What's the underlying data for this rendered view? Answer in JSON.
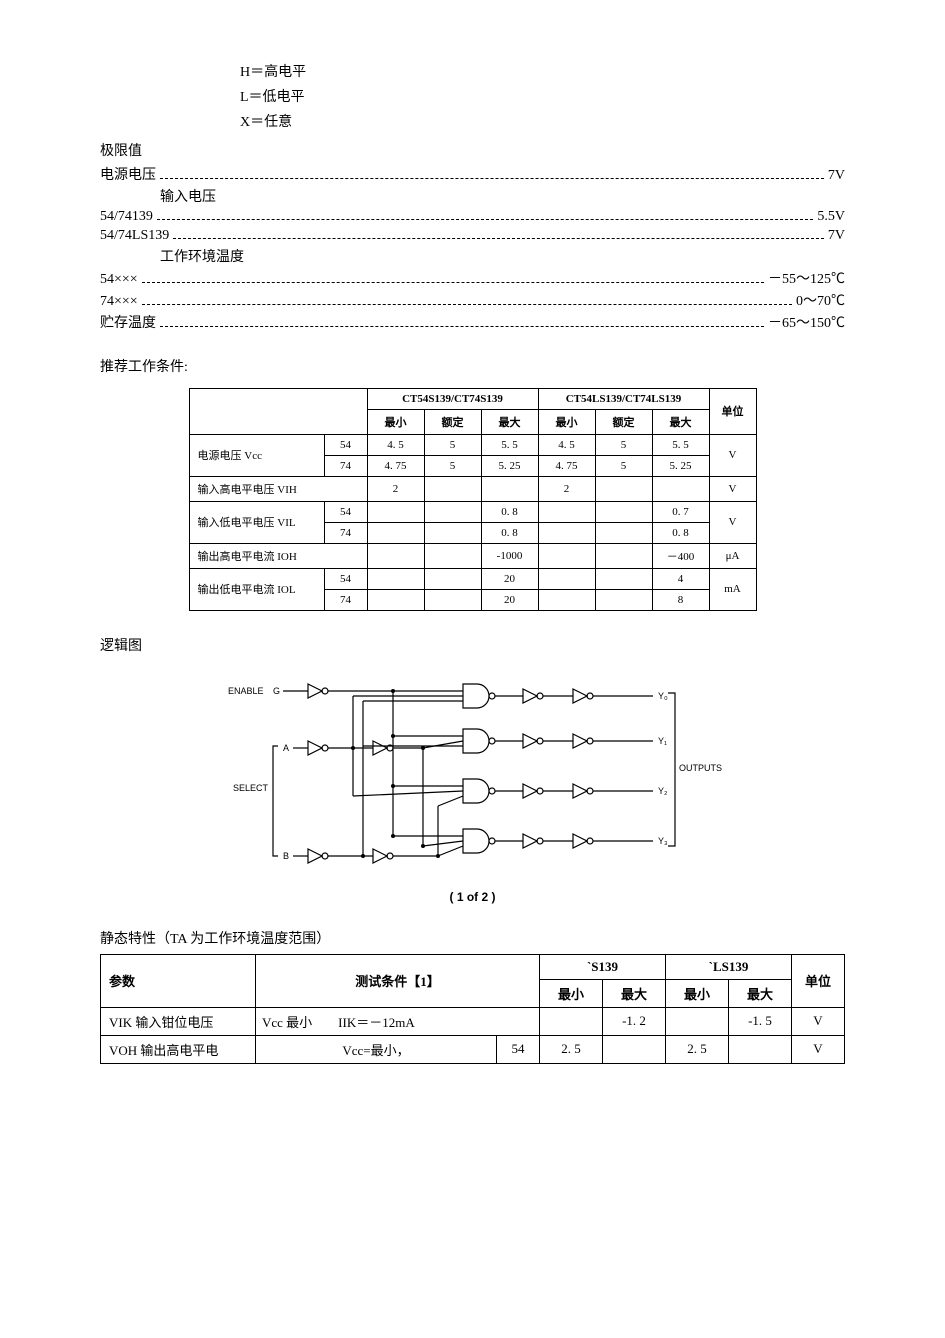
{
  "legend": {
    "h": "H＝高电平",
    "l": "L＝低电平",
    "x": "X＝任意"
  },
  "limits": {
    "title": "极限值",
    "rows": [
      {
        "indent": 1,
        "label": "电源电压",
        "value": "7V"
      }
    ],
    "inputVoltage": {
      "label": "输入电压",
      "rows": [
        {
          "label": "54/74139",
          "value": "5.5V"
        },
        {
          "label": "54/74LS139",
          "value": "7V"
        }
      ]
    },
    "operatingTemp": {
      "label": "工作环境温度",
      "rows": [
        {
          "label": "54×××",
          "value": "－55～125℃"
        },
        {
          "label": "74×××",
          "value": "0～70℃"
        }
      ]
    },
    "storageTemp": {
      "label": "贮存温度",
      "value": "－65～150℃"
    }
  },
  "recommended": {
    "title": "推荐工作条件:",
    "group1": "CT54S139/CT74S139",
    "group2": "CT54LS139/CT74LS139",
    "unitLabel": "单位",
    "subHeaders": [
      "最小",
      "额定",
      "最大",
      "最小",
      "额定",
      "最大"
    ],
    "rows": [
      {
        "param": "电源电压 Vcc",
        "sub": [
          "54",
          "74"
        ],
        "g1": [
          [
            "4. 5",
            "5",
            "5. 5"
          ],
          [
            "4. 75",
            "5",
            "5. 25"
          ]
        ],
        "g2": [
          [
            "4. 5",
            "5",
            "5. 5"
          ],
          [
            "4. 75",
            "5",
            "5. 25"
          ]
        ],
        "unit": "V"
      },
      {
        "param": "输入高电平电压 VIH",
        "sub": [
          ""
        ],
        "g1": [
          [
            "2",
            "",
            ""
          ]
        ],
        "g2": [
          [
            "2",
            "",
            ""
          ]
        ],
        "unit": "V"
      },
      {
        "param": "输入低电平电压 VIL",
        "sub": [
          "54",
          "74"
        ],
        "g1": [
          [
            "",
            "",
            "0. 8"
          ],
          [
            "",
            "",
            "0. 8"
          ]
        ],
        "g2": [
          [
            "",
            "",
            "0. 7"
          ],
          [
            "",
            "",
            "0. 8"
          ]
        ],
        "unit": "V"
      },
      {
        "param": "输出高电平电流 IOH",
        "sub": [
          ""
        ],
        "g1": [
          [
            "",
            "",
            "-1000"
          ]
        ],
        "g2": [
          [
            "",
            "",
            "－400"
          ]
        ],
        "unit": "μA"
      },
      {
        "param": "输出低电平电流 IOL",
        "sub": [
          "54",
          "74"
        ],
        "g1": [
          [
            "",
            "",
            "20"
          ],
          [
            "",
            "",
            "20"
          ]
        ],
        "g2": [
          [
            "",
            "",
            "4"
          ],
          [
            "",
            "",
            "8"
          ]
        ],
        "unit": "mA"
      }
    ]
  },
  "logicDiagram": {
    "title": "逻辑图",
    "caption": "( 1 of 2 )",
    "labels": {
      "enable": "ENABLE",
      "g": "G",
      "select": "SELECT",
      "a": "A",
      "b": "B",
      "outputs": "OUTPUTS",
      "y0": "Y₀",
      "y1": "Y₁",
      "y2": "Y₂",
      "y3": "Y₃"
    }
  },
  "staticChar": {
    "title": "静态特性（TA 为工作环境温度范围）",
    "headers": {
      "param": "参数",
      "cond": "测试条件【1】",
      "g1": "`S139",
      "g2": "`LS139",
      "unit": "单位",
      "min": "最小",
      "max": "最大"
    },
    "rows": [
      {
        "param": "VIK 输入钳位电压",
        "cond": "Vcc 最小　　IIK＝－12mA",
        "sub": "",
        "s_min": "",
        "s_max": "-1. 2",
        "ls_min": "",
        "ls_max": "-1. 5",
        "unit": "V"
      },
      {
        "param": "VOH 输出高电平电",
        "cond": "Vcc=最小，",
        "sub": "54",
        "s_min": "2. 5",
        "s_max": "",
        "ls_min": "2. 5",
        "ls_max": "",
        "unit": "V"
      }
    ]
  }
}
